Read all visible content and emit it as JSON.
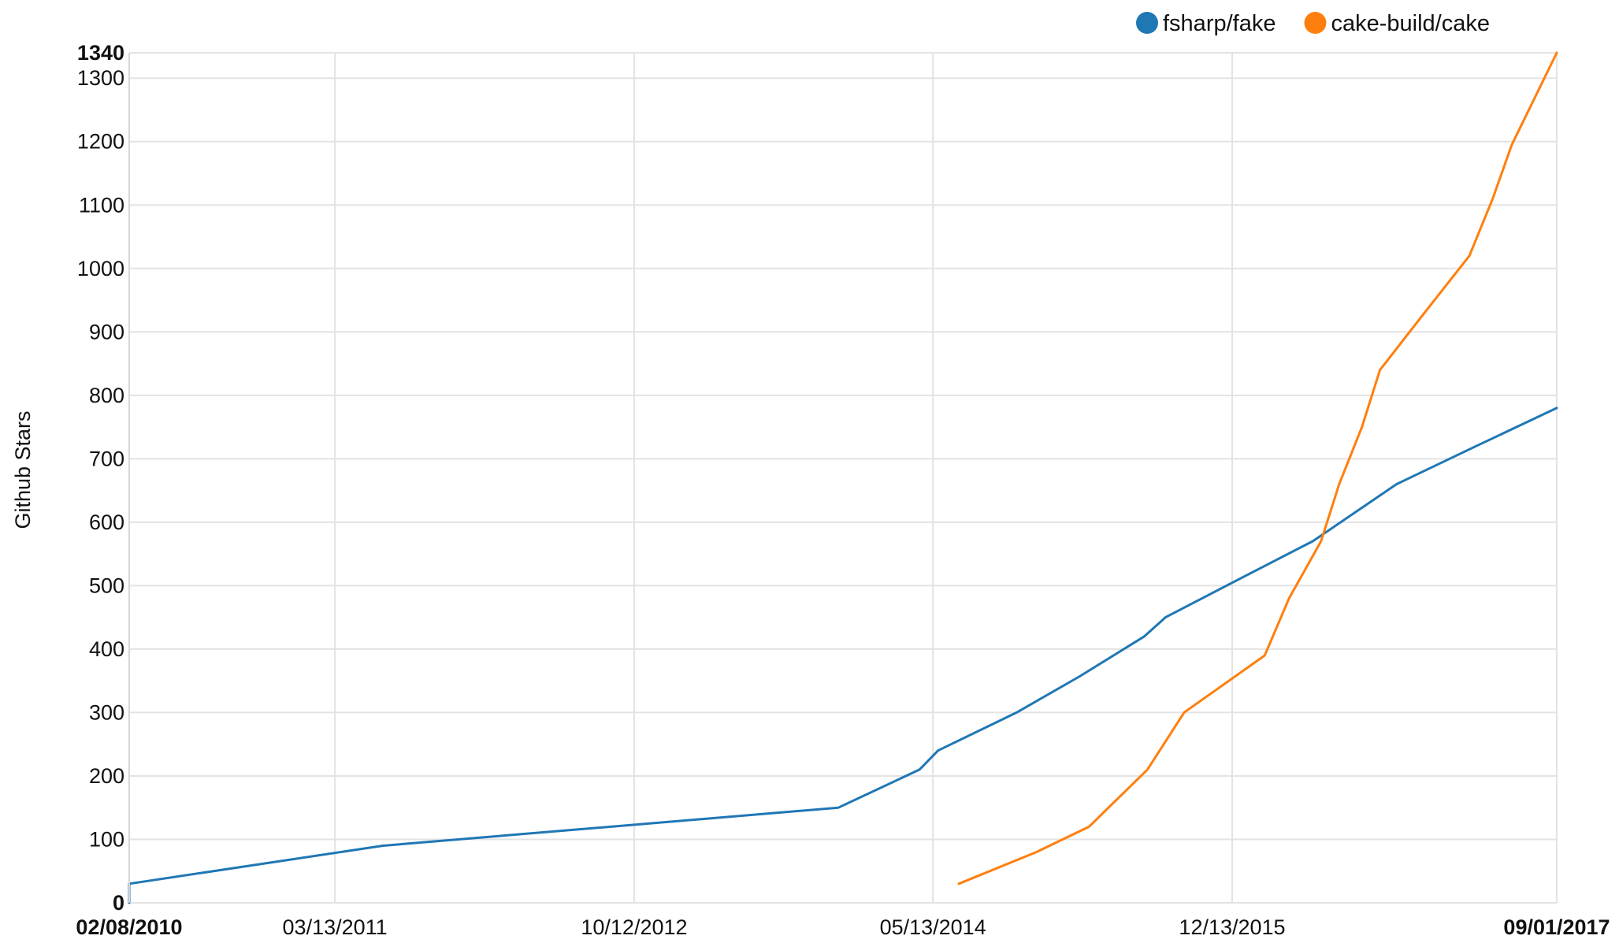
{
  "chart_data": {
    "type": "line",
    "ylabel": "Github Stars",
    "xlabel": "",
    "ylim": [
      0,
      1340
    ],
    "xlim": [
      "2010-02-08",
      "2017-09-01"
    ],
    "x_ticks": [
      {
        "date": "2010-02-08",
        "label": "02/08/2010",
        "bold": true
      },
      {
        "date": "2011-03-13",
        "label": "03/13/2011",
        "bold": false
      },
      {
        "date": "2012-10-12",
        "label": "10/12/2012",
        "bold": false
      },
      {
        "date": "2014-05-13",
        "label": "05/13/2014",
        "bold": false
      },
      {
        "date": "2015-12-13",
        "label": "12/13/2015",
        "bold": false
      },
      {
        "date": "2017-09-01",
        "label": "09/01/2017",
        "bold": true
      }
    ],
    "y_ticks": [
      {
        "value": 0,
        "label": "0",
        "bold": true
      },
      {
        "value": 100,
        "label": "100",
        "bold": false
      },
      {
        "value": 200,
        "label": "200",
        "bold": false
      },
      {
        "value": 300,
        "label": "300",
        "bold": false
      },
      {
        "value": 400,
        "label": "400",
        "bold": false
      },
      {
        "value": 500,
        "label": "500",
        "bold": false
      },
      {
        "value": 600,
        "label": "600",
        "bold": false
      },
      {
        "value": 700,
        "label": "700",
        "bold": false
      },
      {
        "value": 800,
        "label": "800",
        "bold": false
      },
      {
        "value": 900,
        "label": "900",
        "bold": false
      },
      {
        "value": 1000,
        "label": "1000",
        "bold": false
      },
      {
        "value": 1100,
        "label": "1100",
        "bold": false
      },
      {
        "value": 1200,
        "label": "1200",
        "bold": false
      },
      {
        "value": 1300,
        "label": "1300",
        "bold": false
      },
      {
        "value": 1340,
        "label": "1340",
        "bold": true
      }
    ],
    "grid": true,
    "legend_position": "top-right",
    "series": [
      {
        "name": "fsharp/fake",
        "color": "#1f77b4",
        "points": [
          {
            "x": "2010-02-08",
            "y": 0
          },
          {
            "x": "2010-02-08",
            "y": 30
          },
          {
            "x": "2011-06-14",
            "y": 90
          },
          {
            "x": "2013-11-11",
            "y": 150
          },
          {
            "x": "2014-04-17",
            "y": 210
          },
          {
            "x": "2014-05-23",
            "y": 240
          },
          {
            "x": "2014-10-22",
            "y": 300
          },
          {
            "x": "2015-02-21",
            "y": 357
          },
          {
            "x": "2015-06-26",
            "y": 420
          },
          {
            "x": "2015-08-06",
            "y": 450
          },
          {
            "x": "2015-12-21",
            "y": 508
          },
          {
            "x": "2016-05-17",
            "y": 570
          },
          {
            "x": "2016-10-26",
            "y": 660
          },
          {
            "x": "2017-03-24",
            "y": 718
          },
          {
            "x": "2017-09-01",
            "y": 780
          }
        ]
      },
      {
        "name": "cake-build/cake",
        "color": "#ff7f0e",
        "points": [
          {
            "x": "2014-07-02",
            "y": 30
          },
          {
            "x": "2014-11-29",
            "y": 80
          },
          {
            "x": "2015-03-11",
            "y": 120
          },
          {
            "x": "2015-07-02",
            "y": 210
          },
          {
            "x": "2015-09-11",
            "y": 300
          },
          {
            "x": "2016-02-14",
            "y": 390
          },
          {
            "x": "2016-04-01",
            "y": 480
          },
          {
            "x": "2016-06-02",
            "y": 570
          },
          {
            "x": "2016-07-07",
            "y": 660
          },
          {
            "x": "2016-08-20",
            "y": 750
          },
          {
            "x": "2016-09-24",
            "y": 840
          },
          {
            "x": "2016-12-19",
            "y": 930
          },
          {
            "x": "2017-03-16",
            "y": 1020
          },
          {
            "x": "2017-04-30",
            "y": 1110
          },
          {
            "x": "2017-06-06",
            "y": 1195
          },
          {
            "x": "2017-09-01",
            "y": 1340
          }
        ]
      }
    ]
  }
}
